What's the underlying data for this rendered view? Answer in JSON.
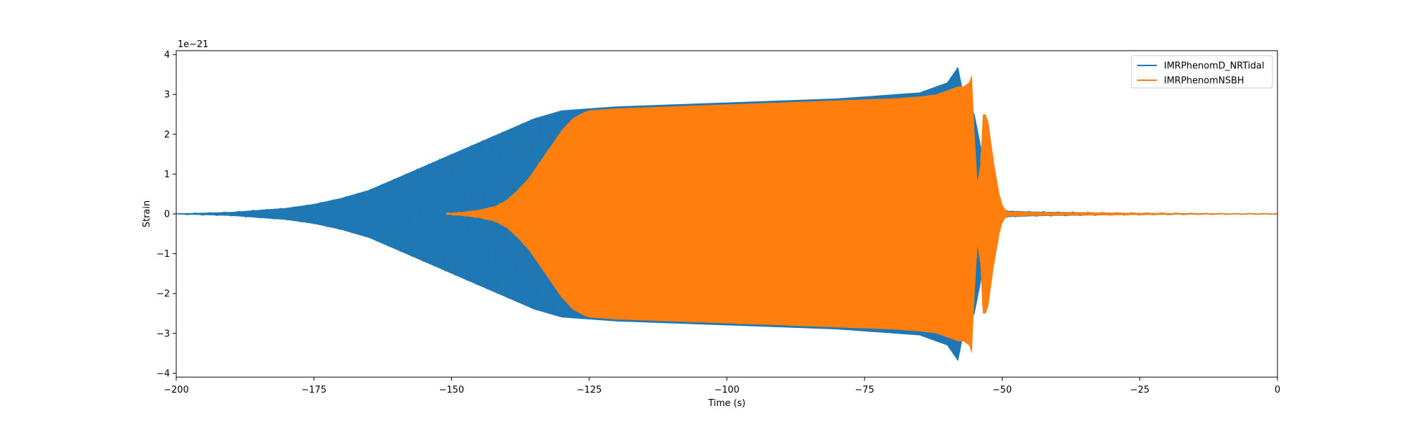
{
  "chart_data": {
    "type": "line",
    "title": "",
    "xlabel": "Time (s)",
    "ylabel": "Strain",
    "y_offset_text": "1e−21",
    "xlim": [
      -200,
      0
    ],
    "ylim": [
      -4.1e-21,
      4.1e-21
    ],
    "xticks": [
      -200,
      -175,
      -150,
      -125,
      -100,
      -75,
      -50,
      -25,
      0
    ],
    "xtick_labels": [
      "−200",
      "−175",
      "−150",
      "−125",
      "−100",
      "−75",
      "−50",
      "−25",
      "0"
    ],
    "yticks": [
      -4,
      -3,
      -2,
      -1,
      0,
      1,
      2,
      3,
      4
    ],
    "ytick_labels": [
      "−4",
      "−3",
      "−2",
      "−1",
      "0",
      "1",
      "2",
      "3",
      "4"
    ],
    "grid": false,
    "legend_position": "top-right",
    "series": [
      {
        "name": "IMRPhenomD_NRTidal",
        "color": "#1f77b4",
        "envelope": {
          "x": [
            -200,
            -190,
            -180,
            -175,
            -170,
            -165,
            -160,
            -155,
            -150,
            -145,
            -140,
            -135,
            -130,
            -125,
            -120,
            -110,
            -100,
            -90,
            -80,
            -70,
            -65,
            -62,
            -60,
            -58,
            -57,
            -56,
            -55,
            -54,
            -53,
            -52,
            -51,
            -50,
            -49,
            -45,
            -40,
            -30,
            -20,
            -10,
            0
          ],
          "upper": [
            0.01,
            0.05,
            0.15,
            0.25,
            0.4,
            0.6,
            0.9,
            1.2,
            1.5,
            1.8,
            2.1,
            2.4,
            2.6,
            2.65,
            2.7,
            2.75,
            2.8,
            2.85,
            2.9,
            3.0,
            3.05,
            3.2,
            3.3,
            3.7,
            3.0,
            2.8,
            2.5,
            1.8,
            1.0,
            0.5,
            0.3,
            0.15,
            0.08,
            0.06,
            0.05,
            0.03,
            0.02,
            0.01,
            0.01
          ],
          "lower": [
            -0.01,
            -0.05,
            -0.15,
            -0.25,
            -0.4,
            -0.6,
            -0.9,
            -1.2,
            -1.5,
            -1.8,
            -2.1,
            -2.4,
            -2.6,
            -2.65,
            -2.7,
            -2.75,
            -2.8,
            -2.85,
            -2.9,
            -3.0,
            -3.05,
            -3.2,
            -3.3,
            -3.7,
            -3.0,
            -2.8,
            -2.5,
            -1.8,
            -1.0,
            -0.5,
            -0.3,
            -0.15,
            -0.08,
            -0.06,
            -0.05,
            -0.03,
            -0.02,
            -0.01,
            -0.01
          ]
        }
      },
      {
        "name": "IMRPhenomNSBH",
        "color": "#ff7f0e",
        "envelope": {
          "x": [
            -151,
            -148,
            -145,
            -142,
            -140,
            -138,
            -136,
            -134,
            -132,
            -130,
            -128,
            -126,
            -125,
            -120,
            -110,
            -100,
            -90,
            -80,
            -70,
            -65,
            -62,
            -60,
            -58,
            -57,
            -56,
            -55.5,
            -55,
            -54.5,
            -54,
            -53.5,
            -53,
            -52.5,
            -52,
            -51.5,
            -51,
            -50.5,
            -50,
            -49.5,
            -49,
            -45,
            -40,
            -30,
            -20,
            -10,
            0
          ],
          "upper": [
            0.02,
            0.05,
            0.1,
            0.2,
            0.35,
            0.6,
            0.9,
            1.3,
            1.7,
            2.1,
            2.4,
            2.55,
            2.6,
            2.65,
            2.7,
            2.75,
            2.8,
            2.85,
            2.9,
            2.95,
            3.0,
            3.1,
            3.2,
            3.2,
            3.3,
            3.5,
            2.0,
            0.8,
            1.2,
            2.5,
            2.5,
            2.3,
            1.8,
            1.3,
            0.9,
            0.5,
            0.25,
            0.12,
            0.06,
            0.05,
            0.04,
            0.03,
            0.02,
            0.01,
            0.01
          ],
          "lower": [
            -0.02,
            -0.05,
            -0.1,
            -0.2,
            -0.35,
            -0.6,
            -0.9,
            -1.3,
            -1.7,
            -2.1,
            -2.4,
            -2.55,
            -2.6,
            -2.65,
            -2.7,
            -2.75,
            -2.8,
            -2.85,
            -2.9,
            -2.95,
            -3.0,
            -3.1,
            -3.2,
            -3.2,
            -3.3,
            -3.5,
            -2.0,
            -0.8,
            -1.2,
            -2.5,
            -2.5,
            -2.3,
            -1.8,
            -1.3,
            -0.9,
            -0.5,
            -0.25,
            -0.12,
            -0.06,
            -0.05,
            -0.04,
            -0.03,
            -0.02,
            -0.01,
            -0.01
          ]
        }
      }
    ]
  }
}
